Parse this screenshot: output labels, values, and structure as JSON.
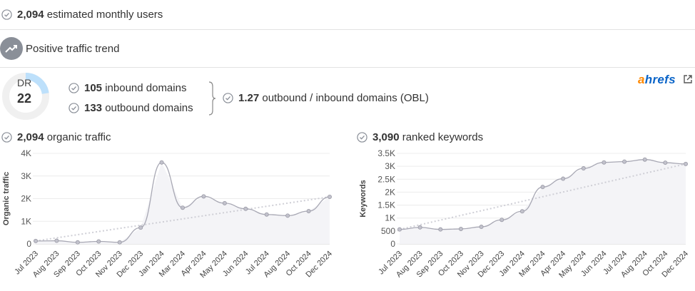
{
  "summary": {
    "monthly_users_value": "2,094",
    "monthly_users_label": "estimated monthly users",
    "trend_label": "Positive traffic trend"
  },
  "dr": {
    "label": "DR",
    "value": "22",
    "inbound_value": "105",
    "inbound_label": "inbound domains",
    "outbound_value": "133",
    "outbound_label": "outbound domains",
    "obl_value": "1.27",
    "obl_label": "outbound / inbound domains (OBL)"
  },
  "brand": {
    "text_a": "a",
    "text_rest": "hrefs"
  },
  "colors": {
    "accent_blue": "#bde0fb",
    "line": "#a8a8b4",
    "trend": "#cfcfd6",
    "check": "#8a8f98",
    "ahrefs_orange": "#ff8800",
    "ahrefs_blue": "#0a64c8"
  },
  "icons": {
    "check": "check-circle-icon",
    "trend": "trending-up-icon",
    "external": "external-link-icon"
  },
  "chart_data": [
    {
      "type": "area",
      "header_value": "2,094",
      "header_label": "organic traffic",
      "ylabel": "Organic traffic",
      "ylim": [
        0,
        4000
      ],
      "yticks": [
        0,
        1000,
        2000,
        3000,
        4000
      ],
      "ytick_labels": [
        "0",
        "1K",
        "2K",
        "3K",
        "4K"
      ],
      "x_labels": [
        "Jul 2023",
        "Aug 2023",
        "Sep 2023",
        "Oct 2023",
        "Nov 2023",
        "Dec 2023",
        "Jan 2024",
        "Mar 2024",
        "Apr 2024",
        "May 2024",
        "Jun 2024",
        "Jul 2024",
        "Aug 2024",
        "Oct 2024",
        "Dec 2024"
      ],
      "values": [
        130,
        140,
        70,
        110,
        70,
        720,
        3600,
        1600,
        2100,
        1800,
        1550,
        1300,
        1250,
        1450,
        2080
      ],
      "trendline": [
        130,
        2080
      ]
    },
    {
      "type": "area",
      "header_value": "3,090",
      "header_label": "ranked keywords",
      "ylabel": "Keywords",
      "ylim": [
        0,
        3500
      ],
      "yticks": [
        0,
        500,
        1000,
        1500,
        2000,
        2500,
        3000,
        3500
      ],
      "ytick_labels": [
        "0",
        "500",
        "1K",
        "1.5K",
        "2K",
        "2.5K",
        "3K",
        "3.5K"
      ],
      "x_labels": [
        "Jul 2023",
        "Aug 2023",
        "Sep 2023",
        "Oct 2023",
        "Nov 2023",
        "Dec 2023",
        "Jan 2024",
        "Mar 2024",
        "Apr 2024",
        "May 2024",
        "Jun 2024",
        "Jul 2024",
        "Aug 2024",
        "Oct 2024",
        "Dec 2024"
      ],
      "values": [
        560,
        640,
        560,
        580,
        660,
        930,
        1260,
        2200,
        2520,
        2920,
        3150,
        3180,
        3260,
        3140,
        3090
      ],
      "trendline": [
        560,
        3090
      ]
    }
  ]
}
